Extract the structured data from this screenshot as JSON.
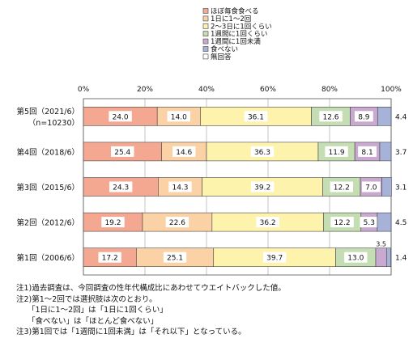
{
  "chart_data": {
    "type": "bar",
    "orientation": "horizontal",
    "stacked": true,
    "x_ticks": [
      "0%",
      "20%",
      "40%",
      "60%",
      "80%",
      "100%"
    ],
    "xlim": [
      0,
      100
    ],
    "legend_position": "top",
    "categories": [
      "第5回（2021/6）",
      "第4回（2018/6）",
      "第3回（2015/6）",
      "第2回（2012/6）",
      "第1回（2006/6）"
    ],
    "category_sub": [
      "（n=10230）",
      "",
      "",
      "",
      ""
    ],
    "series": [
      {
        "name": "ほぼ毎食食べる",
        "color": "#f4a892",
        "values": [
          24.0,
          25.4,
          24.3,
          19.2,
          17.2
        ]
      },
      {
        "name": "1日に1〜2回",
        "color": "#fbd1a6",
        "values": [
          14.0,
          14.6,
          14.3,
          22.6,
          25.1
        ]
      },
      {
        "name": "2〜3日に1回くらい",
        "color": "#fdf3ad",
        "values": [
          36.1,
          36.3,
          39.2,
          36.2,
          39.7
        ]
      },
      {
        "name": "1週間に1回くらい",
        "color": "#c4ddb2",
        "values": [
          12.6,
          11.9,
          12.2,
          12.2,
          13.0
        ]
      },
      {
        "name": "1週間に1回未満",
        "color": "#c9a9cf",
        "values": [
          8.9,
          8.1,
          7.0,
          5.3,
          3.5
        ]
      },
      {
        "name": "食べない",
        "color": "#a6b2d8",
        "values": [
          4.4,
          3.7,
          3.1,
          4.5,
          1.4
        ]
      },
      {
        "name": "無回答",
        "color": "#ffffff",
        "values": [
          0,
          0,
          0,
          0,
          0
        ]
      }
    ]
  },
  "notes": [
    "注1)過去調査は、今回調査の性年代構成比にあわせてウエイトバックした値。",
    "注2)第1〜2回では選択肢は次のとおり。",
    "「1日に1〜2回」は「1日に1回くらい」",
    "「食べない」は「ほとんど食べない」",
    "注3)第1回では「1週間に1回未満」は「それ以下」となっている。"
  ]
}
